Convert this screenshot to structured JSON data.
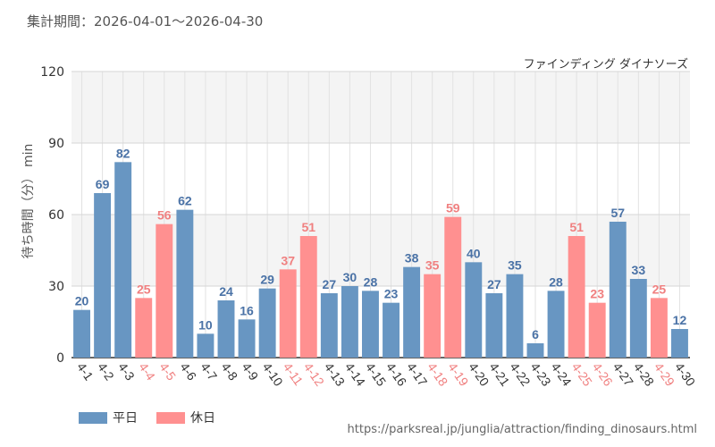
{
  "period_text": "集計期間：2026-04-01～2026-04-30",
  "source_text": "https://parksreal.jp/junglia/attraction/finding_dinosaurs.html",
  "colors": {
    "weekday": "#6896c2",
    "holiday": "#ff9090",
    "holiday_tick": "#f08080",
    "weekday_label": "#4a72a6"
  },
  "chart_data": {
    "type": "bar",
    "title": "ファインディング ダイナソーズ",
    "xlabel": "",
    "ylabel": "待ち時間（分） min",
    "ylim": [
      0,
      120
    ],
    "yticks": [
      0,
      30,
      60,
      90,
      120
    ],
    "grid": true,
    "legend_position": "bottom-left",
    "legend": [
      {
        "name": "平日",
        "key": "weekday"
      },
      {
        "name": "休日",
        "key": "holiday"
      }
    ],
    "categories": [
      "4-1",
      "4-2",
      "4-3",
      "4-4",
      "4-5",
      "4-6",
      "4-7",
      "4-8",
      "4-9",
      "4-10",
      "4-11",
      "4-12",
      "4-13",
      "4-14",
      "4-15",
      "4-16",
      "4-17",
      "4-18",
      "4-19",
      "4-20",
      "4-21",
      "4-22",
      "4-23",
      "4-24",
      "4-25",
      "4-26",
      "4-27",
      "4-28",
      "4-29",
      "4-30"
    ],
    "values": [
      20,
      69,
      82,
      25,
      56,
      62,
      10,
      24,
      16,
      29,
      37,
      51,
      27,
      30,
      28,
      23,
      38,
      35,
      59,
      40,
      27,
      35,
      6,
      28,
      51,
      23,
      57,
      33,
      25,
      12
    ],
    "day_type": [
      "weekday",
      "weekday",
      "weekday",
      "holiday",
      "holiday",
      "weekday",
      "weekday",
      "weekday",
      "weekday",
      "weekday",
      "holiday",
      "holiday",
      "weekday",
      "weekday",
      "weekday",
      "weekday",
      "weekday",
      "holiday",
      "holiday",
      "weekday",
      "weekday",
      "weekday",
      "weekday",
      "weekday",
      "holiday",
      "holiday",
      "weekday",
      "weekday",
      "holiday",
      "weekday"
    ]
  }
}
